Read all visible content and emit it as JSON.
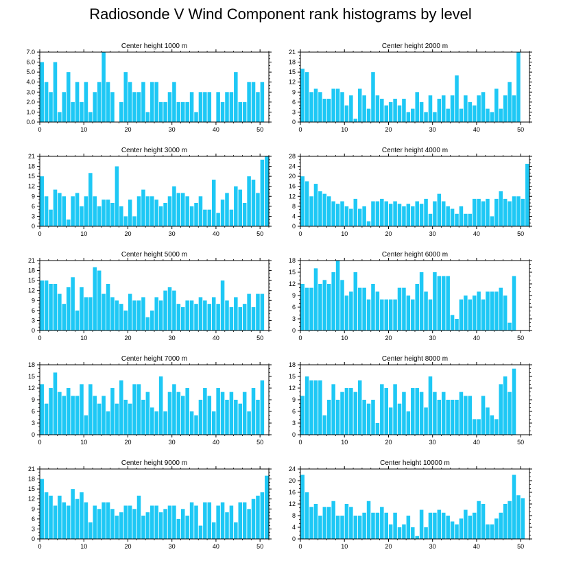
{
  "title": "Radiosonde V Wind Component rank histograms by level",
  "bar_color": "#1ec8f5",
  "chart_data": [
    {
      "type": "bar",
      "title": "Center height 1000 m",
      "ylim": [
        0,
        7
      ],
      "yticks": [
        "0.0",
        "1.0",
        "2.0",
        "3.0",
        "4.0",
        "5.0",
        "6.0",
        "7.0"
      ],
      "xticks": [
        "0",
        "10",
        "20",
        "30",
        "40",
        "50"
      ],
      "values": [
        6,
        4,
        3,
        6,
        1,
        3,
        5,
        2,
        4,
        2,
        4,
        1,
        3,
        4,
        7,
        4,
        3,
        0,
        2,
        5,
        4,
        3,
        3,
        4,
        1,
        4,
        4,
        2,
        2,
        3,
        4,
        2,
        2,
        2,
        3,
        1,
        3,
        3,
        3,
        0,
        3,
        2,
        3,
        3,
        5,
        2,
        2,
        4,
        4,
        3,
        4
      ]
    },
    {
      "type": "bar",
      "title": "Center height 2000 m",
      "ylim": [
        0,
        21
      ],
      "yticks": [
        "0",
        "3",
        "6",
        "9",
        "12",
        "15",
        "18",
        "21"
      ],
      "xticks": [
        "0",
        "10",
        "20",
        "30",
        "40",
        "50"
      ],
      "values": [
        16,
        15,
        9,
        10,
        9,
        7,
        7,
        10,
        10,
        9,
        5,
        8,
        1,
        10,
        8,
        4,
        15,
        8,
        7,
        5,
        6,
        7,
        5,
        7,
        3,
        4,
        9,
        6,
        3,
        8,
        3,
        7,
        8,
        4,
        8,
        14,
        4,
        8,
        6,
        5,
        8,
        9,
        4,
        3,
        10,
        4,
        8,
        12,
        8,
        21,
        0
      ]
    },
    {
      "type": "bar",
      "title": "Center height 3000 m",
      "ylim": [
        0,
        21
      ],
      "yticks": [
        "0",
        "3",
        "6",
        "9",
        "12",
        "15",
        "18",
        "21"
      ],
      "xticks": [
        "0",
        "10",
        "20",
        "30",
        "40",
        "50"
      ],
      "values": [
        15,
        9,
        5,
        11,
        10,
        9,
        2,
        9,
        10,
        6,
        9,
        16,
        9,
        6,
        8,
        8,
        7,
        18,
        6,
        3,
        8,
        3,
        9,
        11,
        9,
        9,
        8,
        6,
        7,
        9,
        12,
        10,
        10,
        9,
        6,
        7,
        9,
        5,
        5,
        14,
        4,
        8,
        10,
        5,
        12,
        11,
        7,
        15,
        14,
        10,
        20,
        21
      ]
    },
    {
      "type": "bar",
      "title": "Center height 4000 m",
      "ylim": [
        0,
        28
      ],
      "yticks": [
        "0",
        "4",
        "8",
        "12",
        "16",
        "20",
        "24",
        "28"
      ],
      "xticks": [
        "0",
        "10",
        "20",
        "30",
        "40",
        "50"
      ],
      "values": [
        20,
        18,
        12,
        17,
        14,
        13,
        12,
        10,
        9,
        10,
        8,
        7,
        11,
        7,
        8,
        2,
        10,
        10,
        11,
        10,
        9,
        10,
        9,
        8,
        9,
        8,
        10,
        9,
        11,
        5,
        10,
        13,
        10,
        8,
        7,
        5,
        8,
        5,
        5,
        11,
        11,
        10,
        11,
        4,
        11,
        14,
        11,
        10,
        12,
        12,
        11,
        25
      ]
    },
    {
      "type": "bar",
      "title": "Center height 5000 m",
      "ylim": [
        0,
        21
      ],
      "yticks": [
        "0",
        "3",
        "6",
        "9",
        "12",
        "15",
        "18",
        "21"
      ],
      "xticks": [
        "0",
        "10",
        "20",
        "30",
        "40",
        "50"
      ],
      "values": [
        15,
        15,
        14,
        14,
        11,
        8,
        13,
        16,
        6,
        13,
        10,
        10,
        19,
        18,
        11,
        14,
        10,
        9,
        8,
        6,
        11,
        9,
        9,
        10,
        4,
        6,
        10,
        9,
        12,
        13,
        12,
        8,
        7,
        9,
        9,
        8,
        10,
        9,
        8,
        10,
        8,
        15,
        9,
        7,
        10,
        7,
        8,
        11,
        7,
        11,
        11
      ]
    },
    {
      "type": "bar",
      "title": "Center height 6000 m",
      "ylim": [
        0,
        18
      ],
      "yticks": [
        "0",
        "3",
        "6",
        "9",
        "12",
        "15",
        "18"
      ],
      "xticks": [
        "0",
        "10",
        "20",
        "30",
        "40",
        "50"
      ],
      "values": [
        12,
        11,
        11,
        16,
        12,
        13,
        12,
        15,
        18,
        13,
        9,
        10,
        15,
        11,
        11,
        8,
        12,
        10,
        8,
        8,
        8,
        8,
        11,
        11,
        9,
        8,
        12,
        15,
        10,
        8,
        15,
        14,
        14,
        14,
        4,
        3,
        8,
        9,
        8,
        9,
        10,
        8,
        10,
        10,
        10,
        11,
        9,
        2,
        14
      ]
    },
    {
      "type": "bar",
      "title": "Center height 7000 m",
      "ylim": [
        0,
        18
      ],
      "yticks": [
        "0",
        "3",
        "6",
        "9",
        "12",
        "15",
        "18"
      ],
      "xticks": [
        "0",
        "10",
        "20",
        "30",
        "40",
        "50"
      ],
      "values": [
        13,
        8,
        12,
        16,
        11,
        10,
        12,
        10,
        10,
        13,
        5,
        13,
        10,
        8,
        10,
        6,
        12,
        8,
        14,
        9,
        8,
        13,
        13,
        9,
        11,
        7,
        6,
        15,
        6,
        11,
        13,
        11,
        10,
        12,
        6,
        5,
        9,
        12,
        10,
        6,
        12,
        11,
        9,
        11,
        9,
        8,
        11,
        6,
        12,
        9,
        14
      ]
    },
    {
      "type": "bar",
      "title": "Center height 8000 m",
      "ylim": [
        0,
        18
      ],
      "yticks": [
        "0",
        "3",
        "6",
        "9",
        "12",
        "15",
        "18"
      ],
      "xticks": [
        "0",
        "10",
        "20",
        "30",
        "40",
        "50"
      ],
      "values": [
        10,
        15,
        14,
        14,
        14,
        5,
        9,
        13,
        9,
        11,
        12,
        12,
        11,
        14,
        9,
        8,
        9,
        3,
        13,
        12,
        7,
        13,
        8,
        11,
        6,
        12,
        12,
        11,
        7,
        15,
        11,
        9,
        11,
        9,
        9,
        9,
        11,
        10,
        10,
        4,
        4,
        10,
        7,
        5,
        4,
        13,
        15,
        11,
        17
      ]
    },
    {
      "type": "bar",
      "title": "Center height 9000 m",
      "ylim": [
        0,
        21
      ],
      "yticks": [
        "0",
        "3",
        "6",
        "9",
        "12",
        "15",
        "18",
        "21"
      ],
      "xticks": [
        "0",
        "10",
        "20",
        "30",
        "40",
        "50"
      ],
      "values": [
        18,
        14,
        13,
        10,
        13,
        11,
        10,
        15,
        12,
        14,
        11,
        5,
        10,
        9,
        11,
        11,
        9,
        7,
        8,
        10,
        10,
        9,
        13,
        7,
        8,
        10,
        10,
        8,
        9,
        10,
        10,
        6,
        9,
        7,
        11,
        10,
        4,
        11,
        11,
        5,
        10,
        11,
        8,
        10,
        5,
        11,
        11,
        9,
        12,
        13,
        14,
        19
      ]
    },
    {
      "type": "bar",
      "title": "Center height 10000 m",
      "ylim": [
        0,
        24
      ],
      "yticks": [
        "0",
        "4",
        "8",
        "12",
        "16",
        "20",
        "24"
      ],
      "xticks": [
        "0",
        "10",
        "20",
        "30",
        "40",
        "50"
      ],
      "values": [
        22,
        16,
        11,
        12,
        8,
        11,
        11,
        13,
        8,
        8,
        12,
        11,
        8,
        8,
        9,
        13,
        9,
        9,
        11,
        9,
        5,
        9,
        4,
        5,
        8,
        4,
        1,
        10,
        4,
        9,
        9,
        10,
        9,
        8,
        6,
        5,
        7,
        10,
        8,
        9,
        13,
        12,
        5,
        5,
        7,
        9,
        12,
        13,
        22,
        15,
        14
      ]
    }
  ]
}
